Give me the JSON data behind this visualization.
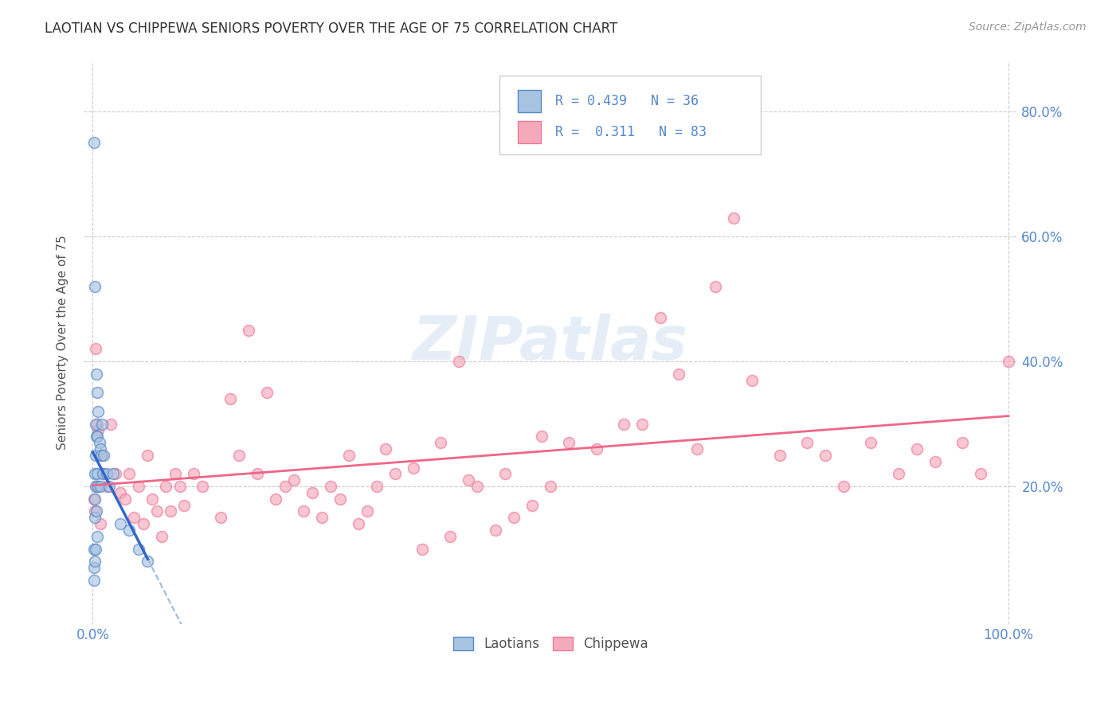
{
  "title": "LAOTIAN VS CHIPPEWA SENIORS POVERTY OVER THE AGE OF 75 CORRELATION CHART",
  "source": "Source: ZipAtlas.com",
  "ylabel": "Seniors Poverty Over the Age of 75",
  "legend_blue_R": "0.439",
  "legend_blue_N": "36",
  "legend_pink_R": "0.311",
  "legend_pink_N": "83",
  "legend_label_blue": "Laotians",
  "legend_label_pink": "Chippewa",
  "blue_fill": "#A8C4E0",
  "blue_edge": "#5588CC",
  "pink_fill": "#F5AABB",
  "pink_edge": "#EE7799",
  "blue_line_color": "#3366CC",
  "blue_dash_color": "#99BBDD",
  "pink_line_color": "#EE6688",
  "axis_color": "#5588CC",
  "grid_color": "#CCCCCC",
  "title_color": "#333333",
  "source_color": "#999999",
  "watermark_color": "#CCDDF0",
  "bg_color": "#FFFFFF",
  "xlim": [
    0.0,
    1.0
  ],
  "ylim": [
    0.0,
    0.88
  ],
  "ytick_vals": [
    0.2,
    0.4,
    0.6,
    0.8
  ],
  "ytick_labels": [
    "20.0%",
    "40.0%",
    "60.0%",
    "80.0%"
  ],
  "xtick_vals": [
    0.0,
    1.0
  ],
  "xtick_labels": [
    "0.0%",
    "100.0%"
  ],
  "blue_x": [
    0.001,
    0.001,
    0.001,
    0.001,
    0.002,
    0.002,
    0.002,
    0.002,
    0.002,
    0.003,
    0.003,
    0.003,
    0.003,
    0.004,
    0.004,
    0.004,
    0.005,
    0.005,
    0.005,
    0.005,
    0.006,
    0.006,
    0.007,
    0.008,
    0.008,
    0.009,
    0.01,
    0.011,
    0.012,
    0.015,
    0.018,
    0.022,
    0.03,
    0.04,
    0.05,
    0.06
  ],
  "blue_y": [
    0.75,
    0.1,
    0.07,
    0.05,
    0.52,
    0.22,
    0.18,
    0.15,
    0.08,
    0.3,
    0.25,
    0.2,
    0.1,
    0.38,
    0.28,
    0.16,
    0.35,
    0.28,
    0.22,
    0.12,
    0.32,
    0.2,
    0.27,
    0.26,
    0.2,
    0.25,
    0.3,
    0.22,
    0.25,
    0.22,
    0.2,
    0.22,
    0.14,
    0.13,
    0.1,
    0.08
  ],
  "pink_x": [
    0.001,
    0.002,
    0.003,
    0.004,
    0.005,
    0.006,
    0.008,
    0.01,
    0.012,
    0.015,
    0.02,
    0.025,
    0.03,
    0.035,
    0.04,
    0.05,
    0.06,
    0.07,
    0.08,
    0.09,
    0.1,
    0.11,
    0.12,
    0.14,
    0.16,
    0.18,
    0.2,
    0.22,
    0.24,
    0.26,
    0.28,
    0.3,
    0.32,
    0.35,
    0.38,
    0.4,
    0.42,
    0.45,
    0.48,
    0.5,
    0.52,
    0.55,
    0.58,
    0.6,
    0.62,
    0.64,
    0.66,
    0.68,
    0.7,
    0.72,
    0.75,
    0.78,
    0.8,
    0.82,
    0.85,
    0.88,
    0.9,
    0.92,
    0.95,
    0.97,
    1.0,
    0.045,
    0.055,
    0.065,
    0.075,
    0.085,
    0.095,
    0.15,
    0.17,
    0.19,
    0.21,
    0.23,
    0.25,
    0.27,
    0.29,
    0.31,
    0.33,
    0.36,
    0.39,
    0.41,
    0.44,
    0.46,
    0.49
  ],
  "pink_y": [
    0.18,
    0.16,
    0.42,
    0.2,
    0.3,
    0.29,
    0.14,
    0.25,
    0.22,
    0.2,
    0.3,
    0.22,
    0.19,
    0.18,
    0.22,
    0.2,
    0.25,
    0.16,
    0.2,
    0.22,
    0.17,
    0.22,
    0.2,
    0.15,
    0.25,
    0.22,
    0.18,
    0.21,
    0.19,
    0.2,
    0.25,
    0.16,
    0.26,
    0.23,
    0.27,
    0.4,
    0.2,
    0.22,
    0.17,
    0.2,
    0.27,
    0.26,
    0.3,
    0.3,
    0.47,
    0.38,
    0.26,
    0.52,
    0.63,
    0.37,
    0.25,
    0.27,
    0.25,
    0.2,
    0.27,
    0.22,
    0.26,
    0.24,
    0.27,
    0.22,
    0.4,
    0.15,
    0.14,
    0.18,
    0.12,
    0.16,
    0.2,
    0.34,
    0.45,
    0.35,
    0.2,
    0.16,
    0.15,
    0.18,
    0.14,
    0.2,
    0.22,
    0.1,
    0.12,
    0.21,
    0.13,
    0.15,
    0.28
  ],
  "marker_size": 100,
  "marker_alpha": 0.65,
  "marker_lw": 1.2
}
